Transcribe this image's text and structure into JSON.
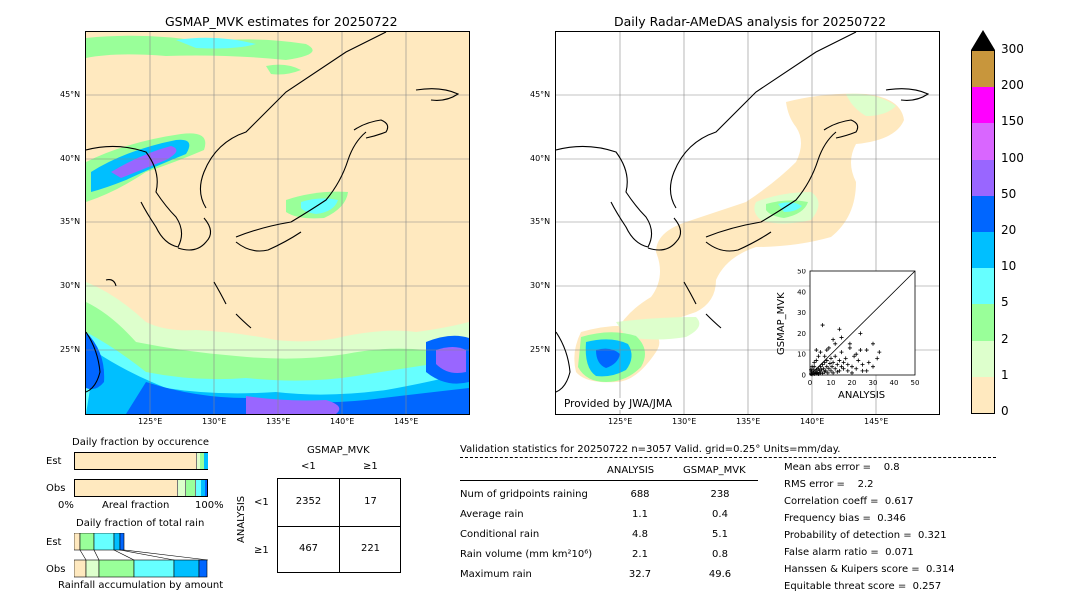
{
  "left_panel": {
    "title": "GSMAP_MVK estimates for 20250722",
    "lat_labels": [
      "45°N",
      "40°N",
      "35°N",
      "30°N",
      "25°N"
    ],
    "lon_labels": [
      "125°E",
      "130°E",
      "135°E",
      "140°E",
      "145°E"
    ]
  },
  "right_panel": {
    "title": "Daily Radar-AMeDAS analysis for 20250722",
    "lat_labels": [
      "45°N",
      "40°N",
      "35°N",
      "30°N",
      "25°N"
    ],
    "lon_labels": [
      "125°E",
      "130°E",
      "135°E",
      "140°E",
      "145°E"
    ],
    "credit": "Provided by JWA/JMA"
  },
  "colorbar": {
    "ticks": [
      "300",
      "200",
      "150",
      "100",
      "50",
      "20",
      "10",
      "5",
      "2",
      "1",
      "0"
    ],
    "colors": [
      "#c8963c",
      "#ff00ff",
      "#d966ff",
      "#9966ff",
      "#0066ff",
      "#00bfff",
      "#66ffff",
      "#99ff99",
      "#ddffcc",
      "#ffe9bf"
    ],
    "extend_color": "#000000"
  },
  "scatter": {
    "xlabel": "ANALYSIS",
    "ylabel": "GSMAP_MVK",
    "ticks": [
      "0",
      "10",
      "20",
      "30",
      "40",
      "50"
    ]
  },
  "occurrence": {
    "title": "Daily fraction by occurence",
    "est_label": "Est",
    "obs_label": "Obs",
    "axis_left": "0%",
    "axis_mid": "Areal fraction",
    "axis_right": "100%"
  },
  "total_rain": {
    "title": "Daily fraction of total rain",
    "est_label": "Est",
    "obs_label": "Obs",
    "footer": "Rainfall accumulation by amount"
  },
  "contingency": {
    "col_header": "GSMAP_MVK",
    "col_lt": "<1",
    "col_ge": "≥1",
    "row_header": "ANALYSIS",
    "row_lt": "<1",
    "row_ge": "≥1",
    "cells": [
      "2352",
      "17",
      "467",
      "221"
    ]
  },
  "validation": {
    "header": "Validation statistics for 20250722  n=3057 Valid. grid=0.25° Units=mm/day.",
    "col_analysis": "ANALYSIS",
    "col_gsmap": "GSMAP_MVK",
    "rows": [
      {
        "label": "Num of gridpoints raining",
        "analysis": "688",
        "gsmap": "238"
      },
      {
        "label": "Average rain",
        "analysis": "1.1",
        "gsmap": "0.4"
      },
      {
        "label": "Conditional rain",
        "analysis": "4.8",
        "gsmap": "5.1"
      },
      {
        "label": "Rain volume (mm km²10⁶)",
        "analysis": "2.1",
        "gsmap": "0.8"
      },
      {
        "label": "Maximum rain",
        "analysis": "32.7",
        "gsmap": "49.6"
      }
    ],
    "scores": [
      "Mean abs error =    0.8",
      "RMS error =    2.2",
      "Correlation coeff =  0.617",
      "Frequency bias =  0.346",
      "Probability of detection =  0.321",
      "False alarm ratio =  0.071",
      "Hanssen & Kuipers score =  0.314",
      "Equitable threat score =  0.257"
    ]
  },
  "chart_data": {
    "type": "scatter",
    "xlabel": "ANALYSIS",
    "ylabel": "GSMAP_MVK",
    "xlim": [
      0,
      50
    ],
    "ylim": [
      0,
      50
    ],
    "grid": false,
    "points": [
      [
        0.5,
        0.5
      ],
      [
        1,
        0.3
      ],
      [
        1.5,
        1
      ],
      [
        2,
        0.5
      ],
      [
        2.5,
        1.5
      ],
      [
        3,
        0.8
      ],
      [
        3,
        2.5
      ],
      [
        3.5,
        1.2
      ],
      [
        4,
        0.5
      ],
      [
        4,
        3
      ],
      [
        4.5,
        2
      ],
      [
        5,
        1
      ],
      [
        5,
        4
      ],
      [
        5.5,
        2.5
      ],
      [
        6,
        0.8
      ],
      [
        6,
        5
      ],
      [
        6.5,
        3
      ],
      [
        7,
        1.5
      ],
      [
        7,
        6
      ],
      [
        7.5,
        2
      ],
      [
        8,
        4
      ],
      [
        8,
        7
      ],
      [
        8.5,
        1
      ],
      [
        9,
        3
      ],
      [
        9.5,
        5.5
      ],
      [
        10,
        2
      ],
      [
        10,
        8
      ],
      [
        10.5,
        4
      ],
      [
        11,
        1
      ],
      [
        11,
        6
      ],
      [
        12,
        3
      ],
      [
        12,
        9
      ],
      [
        13,
        5
      ],
      [
        13,
        1.5
      ],
      [
        14,
        7
      ],
      [
        14,
        2
      ],
      [
        15,
        4
      ],
      [
        15,
        11
      ],
      [
        16,
        3
      ],
      [
        16,
        6
      ],
      [
        17,
        8
      ],
      [
        18,
        2
      ],
      [
        18,
        5
      ],
      [
        19,
        13
      ],
      [
        20,
        4
      ],
      [
        20,
        1
      ],
      [
        21,
        9
      ],
      [
        22,
        3
      ],
      [
        23,
        7
      ],
      [
        24,
        12
      ],
      [
        25,
        5
      ],
      [
        27,
        2
      ],
      [
        28,
        6
      ],
      [
        30,
        4
      ],
      [
        32,
        8
      ],
      [
        33,
        11
      ],
      [
        6,
        24
      ],
      [
        9,
        13
      ],
      [
        11,
        17
      ],
      [
        5,
        11
      ],
      [
        7,
        9
      ],
      [
        3,
        7
      ],
      [
        2,
        4
      ],
      [
        1.5,
        2.5
      ],
      [
        0.8,
        1.8
      ],
      [
        1,
        4
      ],
      [
        0.5,
        2.5
      ],
      [
        2,
        6
      ],
      [
        4,
        9
      ],
      [
        3,
        12
      ],
      [
        30,
        15
      ],
      [
        27,
        12
      ],
      [
        24,
        20
      ],
      [
        19,
        15
      ],
      [
        15,
        18
      ],
      [
        12,
        15
      ],
      [
        8,
        12
      ],
      [
        14,
        22
      ],
      [
        22,
        10
      ],
      [
        25,
        2
      ]
    ]
  }
}
